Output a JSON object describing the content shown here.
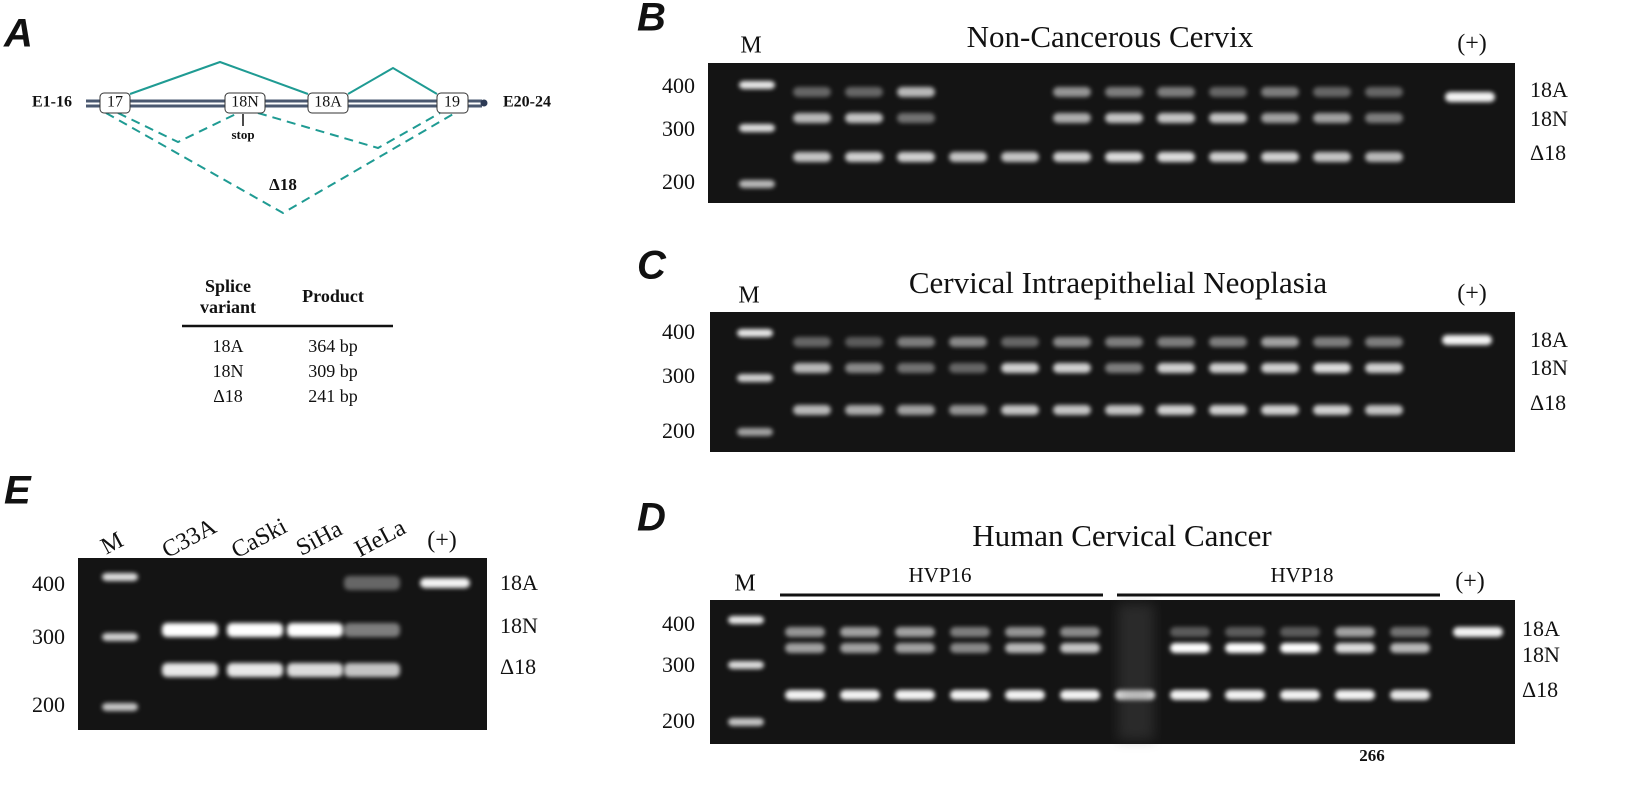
{
  "panel_a": {
    "label": "A",
    "exons": {
      "left": "E1-16",
      "e17": "17",
      "e18n": "18N",
      "e18a": "18A",
      "e19": "19",
      "right": "E20-24"
    },
    "stop": "stop",
    "skip_label": "Δ18",
    "table": {
      "header": {
        "variant": [
          "Splice",
          "variant"
        ],
        "product": "Product"
      },
      "rows": [
        [
          "18A",
          "364 bp"
        ],
        [
          "18N",
          "309 bp"
        ],
        [
          "Δ18",
          "241 bp"
        ]
      ]
    }
  },
  "panel_b": {
    "label": "B",
    "title": "Non-Cancerous Cervix",
    "marker": "M",
    "positive": "(+)",
    "sizes": [
      "400",
      "300",
      "200"
    ],
    "bands": [
      "18A",
      "18N",
      "Δ18"
    ]
  },
  "panel_c": {
    "label": "C",
    "title": "Cervical Intraepithelial Neoplasia",
    "marker": "M",
    "positive": "(+)",
    "sizes": [
      "400",
      "300",
      "200"
    ],
    "bands": [
      "18A",
      "18N",
      "Δ18"
    ]
  },
  "panel_d": {
    "label": "D",
    "title": "Human Cervical Cancer",
    "marker": "M",
    "positive": "(+)",
    "groups": [
      "HVP16",
      "HVP18"
    ],
    "sizes": [
      "400",
      "300",
      "200"
    ],
    "bands": [
      "18A",
      "18N",
      "Δ18"
    ]
  },
  "panel_e": {
    "label": "E",
    "lanes": [
      "M",
      "C33A",
      "CaSki",
      "SiHa",
      "HeLa",
      "(+)"
    ],
    "sizes": [
      "400",
      "300",
      "200"
    ],
    "bands": [
      "18A",
      "18N",
      "Δ18"
    ]
  },
  "page_number": "266"
}
